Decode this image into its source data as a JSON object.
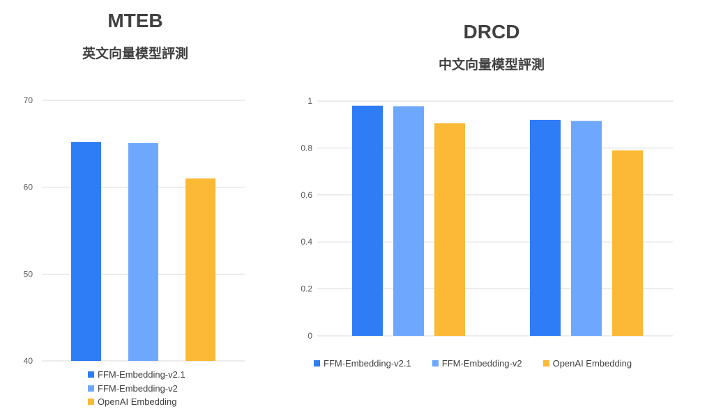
{
  "chart_data": [
    {
      "type": "bar",
      "title": "MTEB",
      "subtitle": "英文向量模型評測",
      "categories": [
        ""
      ],
      "series": [
        {
          "name": "FFM-Embedding-v2.1",
          "color": "#2E7CF6",
          "values": [
            65.2
          ]
        },
        {
          "name": "FFM-Embedding-v2",
          "color": "#6EA8FE",
          "values": [
            65.1
          ]
        },
        {
          "name": "OpenAI Embedding",
          "color": "#FBB936",
          "values": [
            61.0
          ]
        }
      ],
      "ylim": [
        40,
        70
      ],
      "yticks": [
        40,
        50,
        60,
        70
      ],
      "ytick_labels": [
        "40",
        "50",
        "60",
        "70"
      ],
      "grid": true,
      "legend_position": "bottom",
      "xlabel": "",
      "ylabel": ""
    },
    {
      "type": "bar",
      "title": "DRCD",
      "subtitle": "中文向量模型評測",
      "categories": [
        "",
        ""
      ],
      "series": [
        {
          "name": "FFM-Embedding-v2.1",
          "color": "#2E7CF6",
          "values": [
            0.98,
            0.92
          ]
        },
        {
          "name": "FFM-Embedding-v2",
          "color": "#6EA8FE",
          "values": [
            0.978,
            0.915
          ]
        },
        {
          "name": "OpenAI Embedding",
          "color": "#FBB936",
          "values": [
            0.905,
            0.79
          ]
        }
      ],
      "ylim": [
        0,
        1
      ],
      "yticks": [
        0,
        0.2,
        0.4,
        0.6,
        0.8,
        1
      ],
      "ytick_labels": [
        "0",
        "0.2",
        "0.4",
        "0.6",
        "0.8",
        "1"
      ],
      "grid": true,
      "legend_position": "bottom",
      "xlabel": "",
      "ylabel": ""
    }
  ]
}
